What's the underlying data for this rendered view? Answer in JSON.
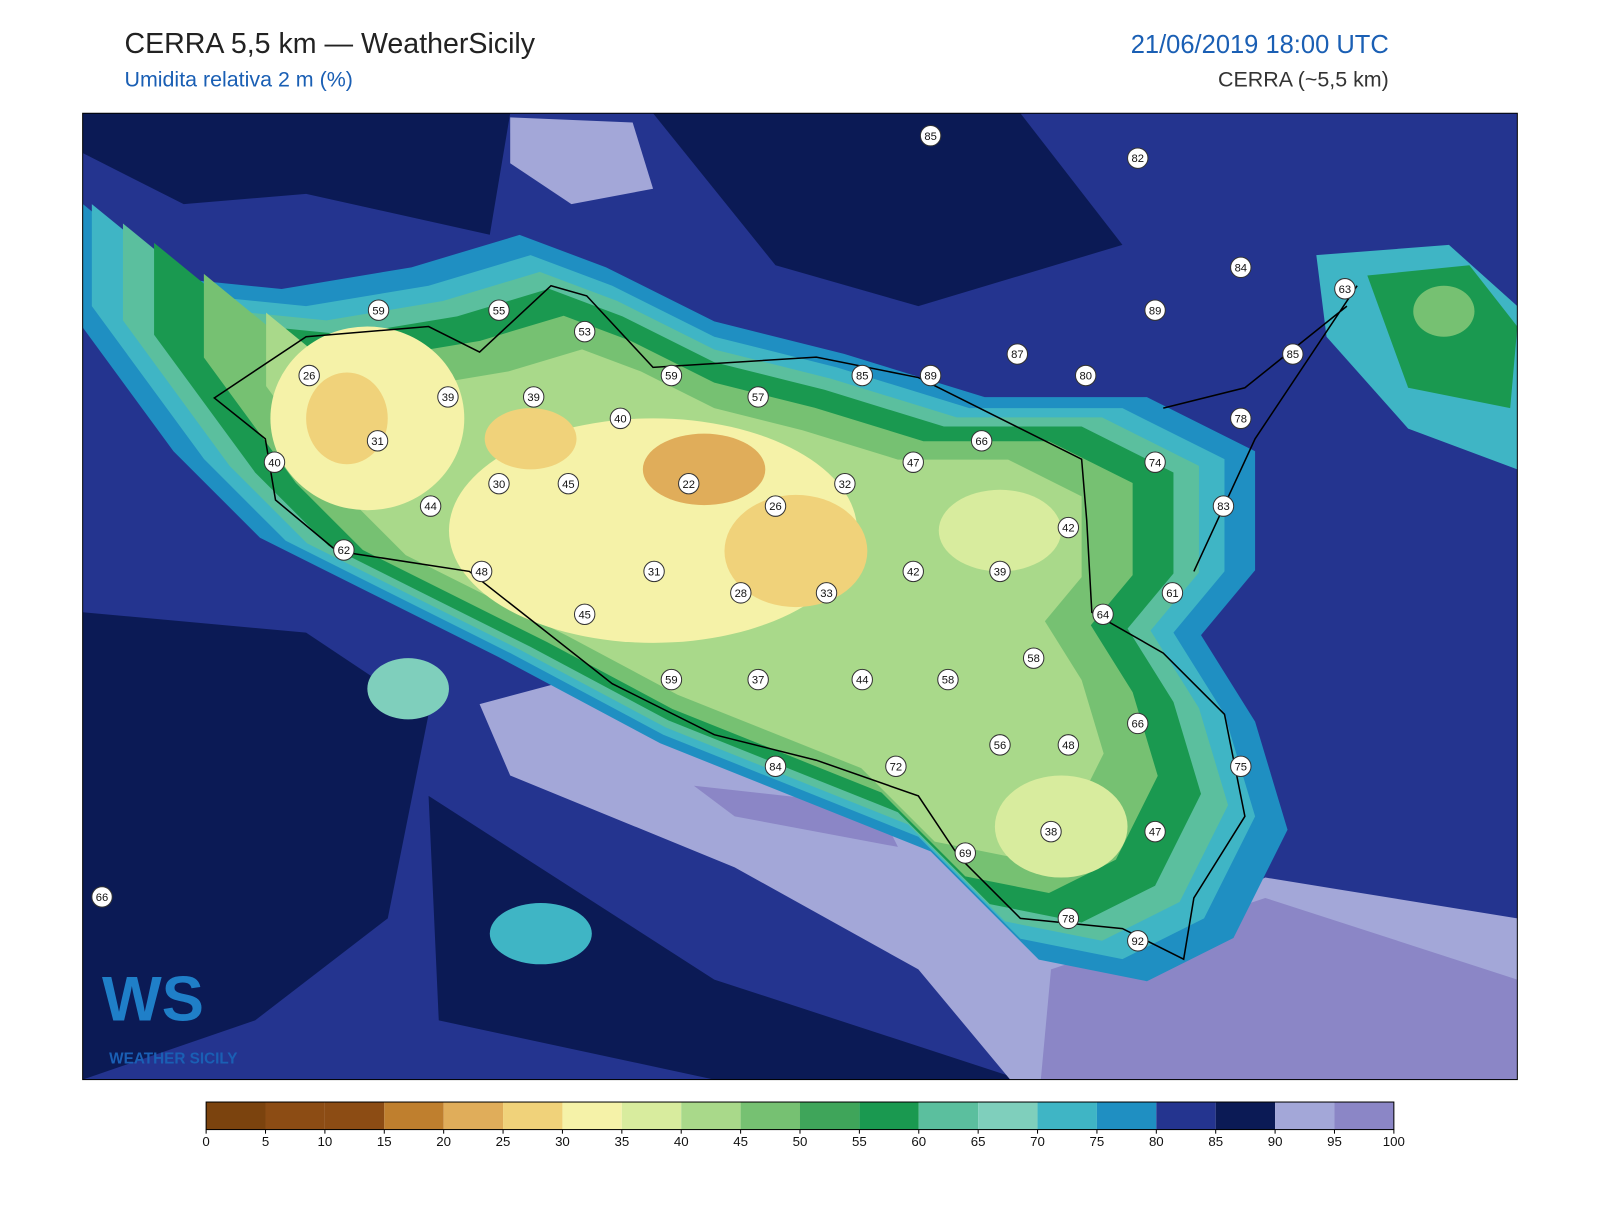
{
  "header": {
    "title": "CERRA 5,5 km — WeatherSicily",
    "subtitle": "Umidita relativa 2 m (%)",
    "datetime": "21/06/2019 18:00 UTC",
    "model": "CERRA (~5,5 km)"
  },
  "map": {
    "stations": [
      85,
      82,
      84,
      89,
      63,
      59,
      55,
      53,
      85,
      87,
      26,
      59,
      85,
      89,
      80,
      39,
      39,
      57,
      40,
      78,
      31,
      66,
      40,
      47,
      74,
      30,
      45,
      22,
      32,
      26,
      44,
      83,
      42,
      62,
      48,
      31,
      42,
      39,
      28,
      33,
      61,
      45,
      64,
      58,
      59,
      37,
      44,
      58,
      66,
      56,
      48,
      84,
      72,
      75,
      38,
      47,
      69,
      66,
      78,
      92
    ]
  },
  "colorbar": {
    "ticks": [
      0,
      5,
      10,
      15,
      20,
      25,
      30,
      35,
      40,
      45,
      50,
      55,
      60,
      65,
      70,
      75,
      80,
      85,
      90,
      95,
      100
    ],
    "colors": [
      "#7b430e",
      "#8c4c14",
      "#8c4c14",
      "#bf7f2e",
      "#e0ad5a",
      "#f0d27a",
      "#f5f2a8",
      "#d8ec9e",
      "#a9d98a",
      "#76c172",
      "#3fa55a",
      "#1a9950",
      "#5bbf9e",
      "#7fcfbc",
      "#3fb5c5",
      "#1f8fc2",
      "#24348f",
      "#0b1a55",
      "#a3a7d8",
      "#8b86c6"
    ]
  },
  "logo": {
    "mark": "WS",
    "text": "WEATHER SICILY"
  }
}
